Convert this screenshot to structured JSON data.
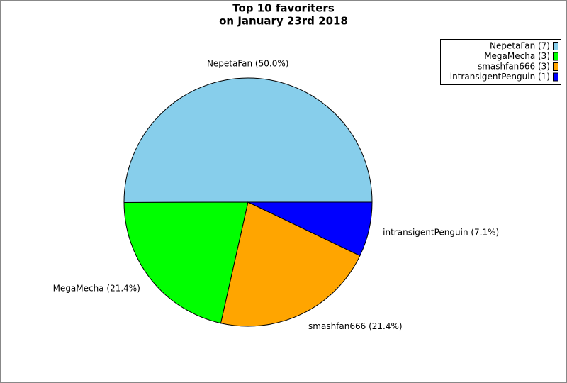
{
  "chart_data": {
    "type": "pie",
    "title": [
      "Top 10 favoriters",
      "on January 23rd 2018"
    ],
    "categories": [
      "NepetaFan (7)",
      "MegaMecha (3)",
      "smashfan666 (3)",
      "intransigentPenguin (1)"
    ],
    "values": [
      50.0,
      21.4,
      21.4,
      7.1
    ],
    "value_labels": [
      "NepetaFan (50.0%)",
      "MegaMecha (21.4%)",
      "smashfan666 (21.4%)",
      "intransigentPenguin (7.1%)"
    ],
    "colors": [
      "#87ceeb",
      "#00ff00",
      "#ffa500",
      "#0000ff"
    ],
    "legend": "top-right"
  }
}
